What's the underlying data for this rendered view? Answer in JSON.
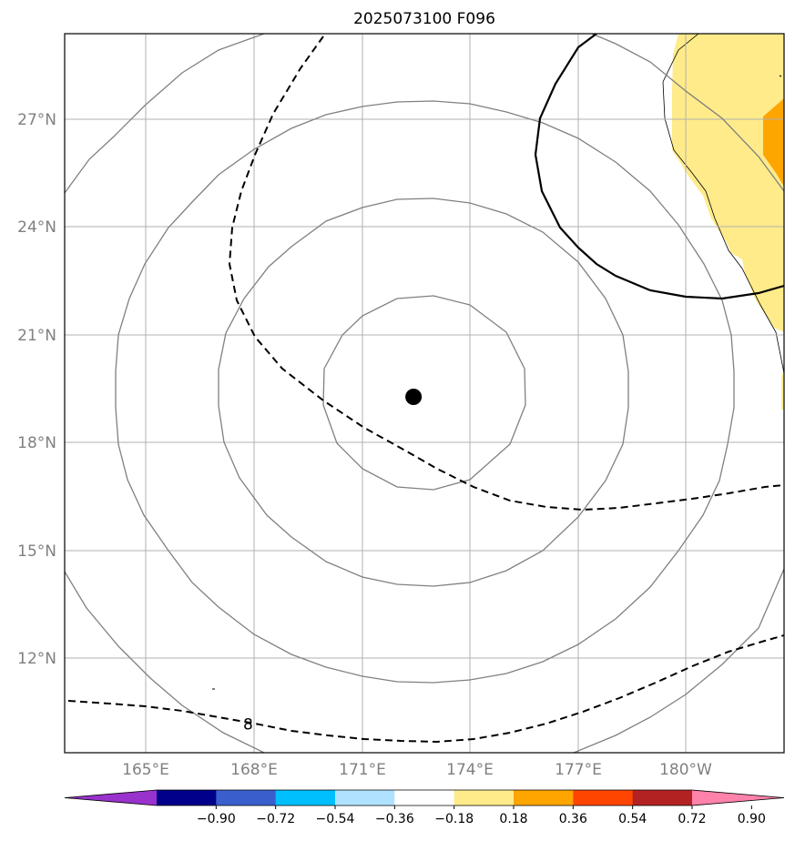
{
  "title": "2025073100 F096",
  "map": {
    "lat_range": [
      9.5,
      29.5
    ],
    "lon_range": [
      163.0,
      183.0
    ],
    "lat_ticks": [
      {
        "value": 27,
        "label": "27°N"
      },
      {
        "value": 24,
        "label": "24°N"
      },
      {
        "value": 21,
        "label": "21°N"
      },
      {
        "value": 18,
        "label": "18°N"
      },
      {
        "value": 15,
        "label": "15°N"
      },
      {
        "value": 12,
        "label": "12°N"
      }
    ],
    "lon_ticks": [
      {
        "value": 165,
        "label": "165°E"
      },
      {
        "value": 168,
        "label": "168°E"
      },
      {
        "value": 171,
        "label": "171°E"
      },
      {
        "value": 174,
        "label": "174°E"
      },
      {
        "value": 177,
        "label": "177°E"
      },
      {
        "value": 180,
        "label": "180°W"
      }
    ],
    "grid": true,
    "center_marker": {
      "lon": 172.7,
      "lat": 19.4
    },
    "contour_label": {
      "text": "8",
      "lon": 168.1,
      "lat": 10.3
    },
    "colors": {
      "pressure_contour": "#808080",
      "dashed_contour": "#000000",
      "solid_contour": "#000000",
      "grid": "#b0b0b0",
      "fill_036": "#ffeb8a",
      "fill_054": "#ffa500"
    }
  },
  "colorbar": {
    "ticks": [
      "−0.90",
      "−0.72",
      "−0.54",
      "−0.36",
      "−0.18",
      "0.18",
      "0.36",
      "0.54",
      "0.72",
      "0.90"
    ],
    "colors": [
      "#9932cc",
      "#00008b",
      "#3a5fcd",
      "#00bfff",
      "#b0e2ff",
      "#ffffff",
      "#ffeb8a",
      "#ffa500",
      "#ff4500",
      "#b22222",
      "#ff82ab"
    ],
    "extend": "both"
  }
}
